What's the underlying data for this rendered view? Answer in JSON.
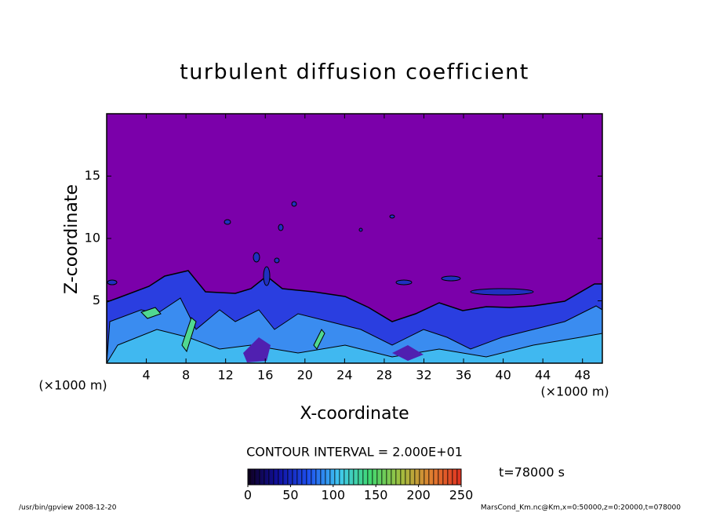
{
  "chart_data": {
    "type": "contour",
    "title": "turbulent diffusion coefficient",
    "xlabel": "X-coordinate",
    "ylabel": "Z-coordinate",
    "x_unit_label": "(×1000 m)",
    "xlim": [
      0,
      50
    ],
    "xticks": [
      4,
      8,
      12,
      16,
      20,
      24,
      28,
      32,
      36,
      40,
      44,
      48
    ],
    "ylim": [
      0,
      20
    ],
    "yticks": [
      5,
      10,
      15
    ],
    "background_color": "#7b00aa",
    "contour_interval_label": "CONTOUR INTERVAL = 2.000E+01",
    "time_label": "t=78000 s",
    "colorbar": {
      "range": [
        0,
        250
      ],
      "ticks": [
        0,
        50,
        100,
        150,
        200,
        250
      ],
      "colors": [
        "#100020",
        "#1010a0",
        "#1e50f0",
        "#40c8f0",
        "#40d870",
        "#a0c040",
        "#e08030",
        "#e03020"
      ]
    },
    "footer_left": "/usr/bin/gpview   2008-12-20",
    "footer_right": "MarsCond_Km.nc@Km,x=0:50000,z=0:20000,t=078000"
  }
}
